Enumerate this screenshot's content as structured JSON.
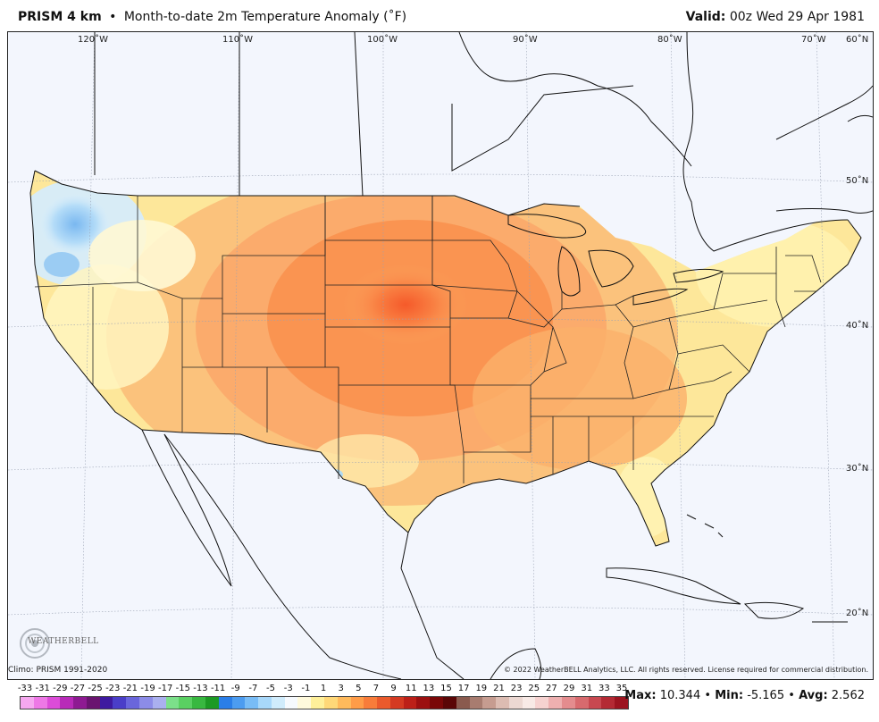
{
  "header": {
    "product": "PRISM 4 km",
    "separator": "•",
    "description": "Month-to-date 2m Temperature Anomaly (˚F)",
    "valid_label": "Valid:",
    "valid_time": "00z Wed 29 Apr 1981"
  },
  "grid_labels": {
    "lon": [
      "120˚W",
      "110˚W",
      "100˚W",
      "90˚W",
      "80˚W",
      "70˚W",
      "60˚N"
    ],
    "lat": [
      "50˚N",
      "40˚N",
      "30˚N",
      "20˚N"
    ]
  },
  "footer": {
    "climo": "Climo: PRISM 1991-2020",
    "copyright": "© 2022 WeatherBELL Analytics, LLC. All rights reserved. License required for commercial distribution.",
    "logo_text": "WEATHERBELL"
  },
  "legend": {
    "ticks": [
      "-33",
      "-31",
      "-29",
      "-27",
      "-25",
      "-23",
      "-21",
      "-19",
      "-17",
      "-15",
      "-13",
      "-11",
      "-9",
      "-7",
      "-5",
      "-3",
      "-1",
      "1",
      "3",
      "5",
      "7",
      "9",
      "11",
      "13",
      "15",
      "17",
      "19",
      "21",
      "23",
      "25",
      "27",
      "29",
      "31",
      "33",
      "35"
    ],
    "colors": [
      "#f6a8f0",
      "#ee78e6",
      "#dc4cd8",
      "#b82ab8",
      "#8e1a92",
      "#6a1470",
      "#3e1aa0",
      "#4a3ec8",
      "#6a66dc",
      "#8c8ce8",
      "#aab0ef",
      "#7ce08a",
      "#5ad062",
      "#38b840",
      "#1c9a24",
      "#2a7ee8",
      "#4c9cf0",
      "#78bcf6",
      "#a8d8fa",
      "#d0ecfc",
      "#f6fafe",
      "#fffadc",
      "#fff09a",
      "#ffd878",
      "#ffba5c",
      "#ff9c48",
      "#f87c3a",
      "#ea5a2c",
      "#d43a22",
      "#bc2018",
      "#9c1010",
      "#7a0808",
      "#5a0606",
      "#8a5a4e",
      "#a87c70",
      "#c69c90",
      "#dcbcb2",
      "#ecd8d2",
      "#f8eae6",
      "#f6d2d0",
      "#eeb0b0",
      "#e48c8e",
      "#d86a6e",
      "#c84850",
      "#b42a34",
      "#9c1420"
    ]
  },
  "stats": {
    "max_label": "Max:",
    "max": "10.344",
    "min_label": "Min:",
    "min": "-5.165",
    "avg_label": "Avg:",
    "avg": "2.562"
  }
}
